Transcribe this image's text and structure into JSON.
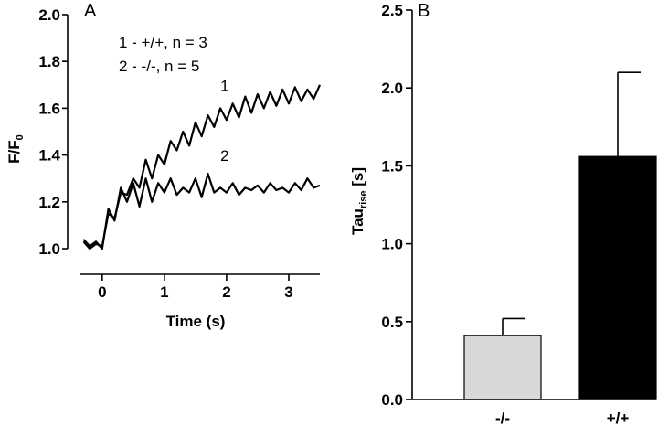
{
  "chart_data": [
    {
      "panel": "A",
      "type": "line",
      "xlabel": "Time (s)",
      "ylabel": "F/F",
      "ylabel_sub": "0",
      "xlim": [
        -0.35,
        3.5
      ],
      "ylim": [
        1.0,
        2.0
      ],
      "xticks": [
        0,
        1,
        2,
        3
      ],
      "yticks": [
        1.0,
        1.2,
        1.4,
        1.6,
        1.8,
        2.0
      ],
      "xtick_labels": [
        "0",
        "1",
        "2",
        "3"
      ],
      "ytick_labels": [
        "1.0",
        "1.2",
        "1.4",
        "1.6",
        "1.8",
        "2.0"
      ],
      "legend": [
        "1 -  +/+, n = 3",
        "2 -  -/-, n = 5"
      ],
      "series": [
        {
          "name": "1",
          "x": [
            -0.3,
            -0.2,
            -0.1,
            0,
            0.1,
            0.2,
            0.3,
            0.4,
            0.5,
            0.6,
            0.7,
            0.8,
            0.9,
            1.0,
            1.1,
            1.2,
            1.3,
            1.4,
            1.5,
            1.6,
            1.7,
            1.8,
            1.9,
            2.0,
            2.1,
            2.2,
            2.3,
            2.4,
            2.5,
            2.6,
            2.7,
            2.8,
            2.9,
            3.0,
            3.1,
            3.2,
            3.3,
            3.4,
            3.5
          ],
          "values": [
            1.03,
            1.0,
            1.02,
            1.01,
            1.15,
            1.13,
            1.24,
            1.23,
            1.3,
            1.26,
            1.38,
            1.3,
            1.4,
            1.36,
            1.46,
            1.42,
            1.5,
            1.44,
            1.54,
            1.48,
            1.57,
            1.52,
            1.6,
            1.55,
            1.62,
            1.56,
            1.65,
            1.58,
            1.66,
            1.6,
            1.67,
            1.61,
            1.68,
            1.62,
            1.69,
            1.63,
            1.68,
            1.64,
            1.7
          ]
        },
        {
          "name": "2",
          "x": [
            -0.3,
            -0.2,
            -0.1,
            0,
            0.1,
            0.2,
            0.3,
            0.4,
            0.5,
            0.6,
            0.7,
            0.8,
            0.9,
            1.0,
            1.1,
            1.2,
            1.3,
            1.4,
            1.5,
            1.6,
            1.7,
            1.8,
            1.9,
            2.0,
            2.1,
            2.2,
            2.3,
            2.4,
            2.5,
            2.6,
            2.7,
            2.8,
            2.9,
            3.0,
            3.1,
            3.2,
            3.3,
            3.4,
            3.5
          ],
          "values": [
            1.04,
            1.01,
            1.03,
            1.0,
            1.17,
            1.12,
            1.26,
            1.2,
            1.28,
            1.18,
            1.3,
            1.2,
            1.28,
            1.24,
            1.3,
            1.23,
            1.26,
            1.24,
            1.3,
            1.22,
            1.32,
            1.24,
            1.26,
            1.24,
            1.28,
            1.23,
            1.26,
            1.25,
            1.27,
            1.24,
            1.28,
            1.25,
            1.26,
            1.24,
            1.28,
            1.25,
            1.3,
            1.26,
            1.27
          ]
        }
      ]
    },
    {
      "panel": "B",
      "type": "bar",
      "ylabel": "Tau",
      "ylabel_sub": "rise",
      "ylabel_suffix": " [s]",
      "categories": [
        "-/-",
        "+/+"
      ],
      "values": [
        0.41,
        1.56
      ],
      "errors": [
        0.11,
        0.54
      ],
      "colors": [
        "#d8d8d8",
        "#000000"
      ],
      "ylim": [
        0.0,
        2.5
      ],
      "yticks": [
        0.0,
        0.5,
        1.0,
        1.5,
        2.0,
        2.5
      ],
      "ytick_labels": [
        "0.0",
        "0.5",
        "1.0",
        "1.5",
        "2.0",
        "2.5"
      ]
    }
  ]
}
